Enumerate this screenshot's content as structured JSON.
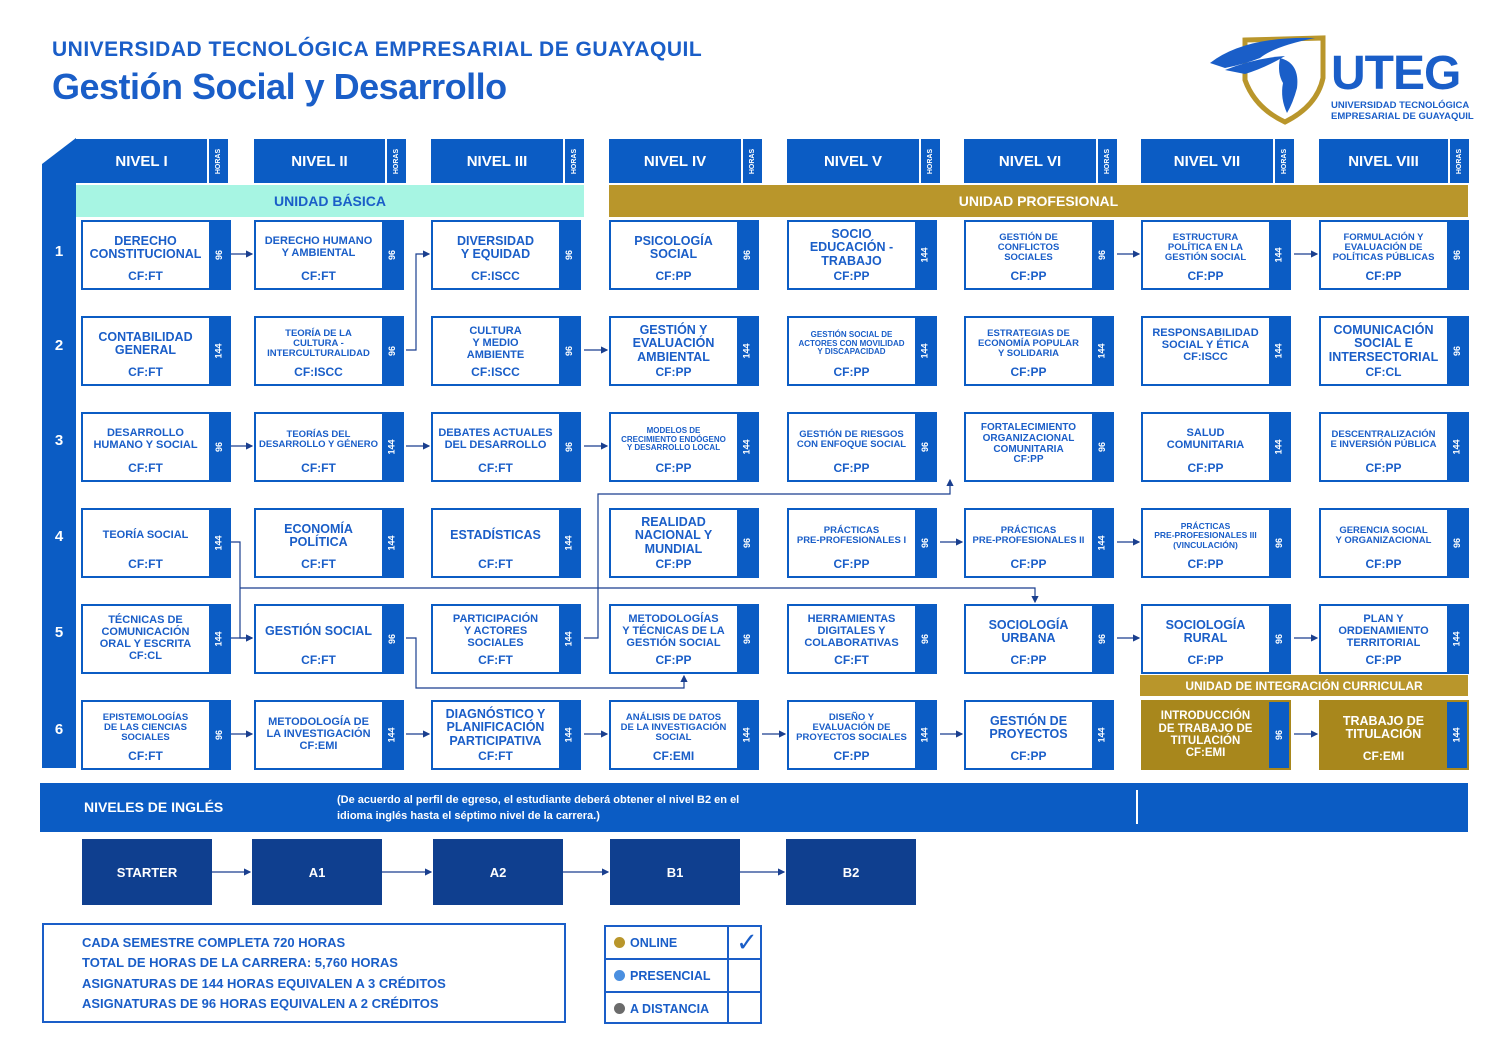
{
  "header": {
    "university": "UNIVERSIDAD TECNOLÓGICA EMPRESARIAL DE GUAYAQUIL",
    "program": "Gestión Social y Desarrollo"
  },
  "logo": {
    "word": "UTEG",
    "sub1": "UNIVERSIDAD TECNOLÓGICA",
    "sub2": "EMPRESARIAL DE GUAYAQUIL"
  },
  "levels": [
    {
      "name": "NIVEL I",
      "hours": "HORAS"
    },
    {
      "name": "NIVEL II",
      "hours": "HORAS"
    },
    {
      "name": "NIVEL III",
      "hours": "HORAS"
    },
    {
      "name": "NIVEL IV",
      "hours": "HORAS"
    },
    {
      "name": "NIVEL V",
      "hours": "HORAS"
    },
    {
      "name": "NIVEL VI",
      "hours": "HORAS"
    },
    {
      "name": "NIVEL VII",
      "hours": "HORAS"
    },
    {
      "name": "NIVEL VIII",
      "hours": "HORAS"
    }
  ],
  "rows": [
    "1",
    "2",
    "3",
    "4",
    "5",
    "6"
  ],
  "units": {
    "basica": "UNIDAD BÁSICA",
    "profesional": "UNIDAD PROFESIONAL",
    "integracion": "UNIDAD DE INTEGRACIÓN CURRICULAR"
  },
  "courses": [
    [
      {
        "name": "DERECHO\nCONSTITUCIONAL",
        "code": "CF:FT",
        "hours": "96"
      },
      {
        "name": "CONTABILIDAD\nGENERAL",
        "code": "CF:FT",
        "hours": "144"
      },
      {
        "name": "DESARROLLO\nHUMANO Y SOCIAL",
        "code": "CF:FT",
        "hours": "96"
      },
      {
        "name": "TEORÍA SOCIAL",
        "code": "CF:FT",
        "hours": "144"
      },
      {
        "name": "TÉCNICAS DE\nCOMUNICACIÓN\nORAL Y ESCRITA\nCF:CL",
        "code": "",
        "hours": "144"
      },
      {
        "name": "EPISTEMOLOGÍAS\nDE LAS CIENCIAS\nSOCIALES",
        "code": "CF:FT",
        "hours": "96"
      }
    ],
    [
      {
        "name": "DERECHO HUMANO\nY AMBIENTAL",
        "code": "CF:FT",
        "hours": "96"
      },
      {
        "name": "TEORÍA DE LA\nCULTURA -\nINTERCULTURALIDAD",
        "code": "CF:ISCC",
        "hours": "96"
      },
      {
        "name": "TEORÍAS DEL\nDESARROLLO Y GÉNERO",
        "code": "CF:FT",
        "hours": "144"
      },
      {
        "name": "ECONOMÍA\nPOLÍTICA",
        "code": "CF:FT",
        "hours": "144"
      },
      {
        "name": "GESTIÓN SOCIAL",
        "code": "CF:FT",
        "hours": "96"
      },
      {
        "name": "METODOLOGÍA DE\nLA INVESTIGACIÓN\nCF:EMI",
        "code": "",
        "hours": "144"
      }
    ],
    [
      {
        "name": "DIVERSIDAD\nY EQUIDAD",
        "code": "CF:ISCC",
        "hours": "96"
      },
      {
        "name": "CULTURA\nY MEDIO\nAMBIENTE",
        "code": "CF:ISCC",
        "hours": "96"
      },
      {
        "name": "DEBATES ACTUALES\nDEL DESARROLLO",
        "code": "CF:FT",
        "hours": "96"
      },
      {
        "name": "ESTADÍSTICAS",
        "code": "CF:FT",
        "hours": "144"
      },
      {
        "name": "PARTICIPACIÓN\nY ACTORES SOCIALES",
        "code": "CF:FT",
        "hours": "144"
      },
      {
        "name": "DIAGNÓSTICO Y\nPLANIFICACIÓN\nPARTICIPATIVA",
        "code": "CF:FT",
        "hours": "144"
      }
    ],
    [
      {
        "name": "PSICOLOGÍA\nSOCIAL",
        "code": "CF:PP",
        "hours": "96"
      },
      {
        "name": "GESTIÓN Y\nEVALUACIÓN\nAMBIENTAL",
        "code": "CF:PP",
        "hours": "144"
      },
      {
        "name": "MODELOS DE\nCRECIMIENTO ENDÓGENO\nY DESARROLLO LOCAL",
        "code": "CF:PP",
        "hours": "144"
      },
      {
        "name": "REALIDAD\nNACIONAL Y\nMUNDIAL",
        "code": "CF:PP",
        "hours": "96"
      },
      {
        "name": "METODOLOGÍAS\nY TÉCNICAS DE LA\nGESTIÓN SOCIAL",
        "code": "CF:PP",
        "hours": "96"
      },
      {
        "name": "ANÁLISIS DE DATOS\nDE LA INVESTIGACIÓN\nSOCIAL",
        "code": "CF:EMI",
        "hours": "144"
      }
    ],
    [
      {
        "name": "SOCIO\nEDUCACIÓN -\nTRABAJO",
        "code": "CF:PP",
        "hours": "144"
      },
      {
        "name": "GESTIÓN SOCIAL DE\nACTORES CON MOVILIDAD\nY DISCAPACIDAD",
        "code": "CF:PP",
        "hours": "144"
      },
      {
        "name": "GESTIÓN DE RIESGOS\nCON ENFOQUE SOCIAL",
        "code": "CF:PP",
        "hours": "96"
      },
      {
        "name": "PRÁCTICAS\nPRE-PROFESIONALES I",
        "code": "CF:PP",
        "hours": "96"
      },
      {
        "name": "HERRAMIENTAS\nDIGITALES Y\nCOLABORATIVAS",
        "code": "CF:FT",
        "hours": "96"
      },
      {
        "name": "DISEÑO Y\nEVALUACIÓN DE\nPROYECTOS SOCIALES",
        "code": "CF:PP",
        "hours": "144"
      }
    ],
    [
      {
        "name": "GESTIÓN DE\nCONFLICTOS\nSOCIALES",
        "code": "CF:PP",
        "hours": "96"
      },
      {
        "name": "ESTRATEGIAS DE\nECONOMÍA POPULAR\nY SOLIDARIA",
        "code": "CF:PP",
        "hours": "144"
      },
      {
        "name": "FORTALECIMIENTO\nORGANIZACIONAL\nCOMUNITARIA\nCF:PP",
        "code": "",
        "hours": "96"
      },
      {
        "name": "PRÁCTICAS\nPRE-PROFESIONALES II",
        "code": "CF:PP",
        "hours": "144"
      },
      {
        "name": "SOCIOLOGÍA\nURBANA",
        "code": "CF:PP",
        "hours": "96"
      },
      {
        "name": "GESTIÓN DE\nPROYECTOS",
        "code": "CF:PP",
        "hours": "144"
      }
    ],
    [
      {
        "name": "ESTRUCTURA\nPOLÍTICA EN LA\nGESTIÓN SOCIAL",
        "code": "CF:PP",
        "hours": "144"
      },
      {
        "name": "RESPONSABILIDAD\nSOCIAL Y ÉTICA\nCF:ISCC",
        "code": "",
        "hours": "144"
      },
      {
        "name": "SALUD\nCOMUNITARIA",
        "code": "CF:PP",
        "hours": "144"
      },
      {
        "name": "PRÁCTICAS\nPRE-PROFESIONALES III\n(VINCULACIÓN)",
        "code": "CF:PP",
        "hours": "96"
      },
      {
        "name": "SOCIOLOGÍA\nRURAL",
        "code": "CF:PP",
        "hours": "96"
      },
      {
        "name": "INTRODUCCIÓN\nDE TRABAJO DE\nTITULACIÓN\nCF:EMI",
        "code": "",
        "hours": "96"
      }
    ],
    [
      {
        "name": "FORMULACIÓN Y\nEVALUACIÓN DE\nPOLÍTICAS PÚBLICAS",
        "code": "CF:PP",
        "hours": "96"
      },
      {
        "name": "COMUNICACIÓN\nSOCIAL E\nINTERSECTORIAL",
        "code": "CF:CL",
        "hours": "96"
      },
      {
        "name": "DESCENTRALIZACIÓN\nE INVERSIÓN PÚBLICA",
        "code": "CF:PP",
        "hours": "144"
      },
      {
        "name": "GERENCIA SOCIAL\nY ORGANIZACIONAL",
        "code": "CF:PP",
        "hours": "96"
      },
      {
        "name": "PLAN Y\nORDENAMIENTO\nTERRITORIAL",
        "code": "CF:PP",
        "hours": "144"
      },
      {
        "name": "TRABAJO DE\nTITULACIÓN",
        "code": "CF:EMI",
        "hours": "144"
      }
    ]
  ],
  "english": {
    "title": "NIVELES DE INGLÉS",
    "note": "(De acuerdo al perfil de egreso, el estudiante deberá obtener el nivel B2 en el idioma inglés hasta el séptimo nivel de la carrera.)",
    "levels": [
      "STARTER",
      "A1",
      "A2",
      "B1",
      "B2"
    ]
  },
  "info": [
    "CADA SEMESTRE COMPLETA 720 HORAS",
    "TOTAL DE HORAS DE LA CARRERA: 5,760 HORAS",
    "ASIGNATURAS DE 144 HORAS EQUIVALEN A 3 CRÉDITOS",
    "ASIGNATURAS DE 96 HORAS EQUIVALEN A 2 CRÉDITOS"
  ],
  "modalities": [
    {
      "label": "ONLINE",
      "color": "#b9962b",
      "checked": "✓"
    },
    {
      "label": "PRESENCIAL",
      "color": "#4a8fe0",
      "checked": ""
    },
    {
      "label": "A DISTANCIA",
      "color": "#6b6b6b",
      "checked": ""
    }
  ],
  "colors": {
    "primary": "#0b5cc4",
    "text": "#1a5ec8",
    "gold": "#b9962b",
    "mint": "#a7f5e3",
    "navy": "#0f3f8f"
  }
}
